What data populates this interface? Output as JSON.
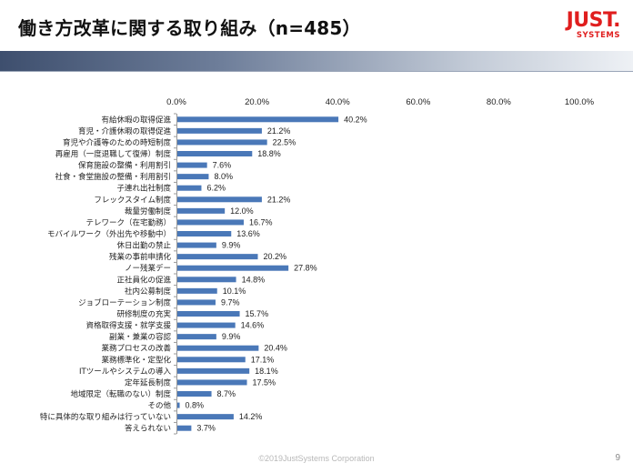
{
  "slide": {
    "title": "働き方改革に関する取り組み（n=485）",
    "logo_line1": "JUST.",
    "logo_line2": "SYSTEMS",
    "footer": "©2019JustSystems Corporation",
    "page_number": "9",
    "logo_color": "#e01e1e"
  },
  "chart_data": {
    "type": "bar",
    "orientation": "horizontal",
    "xlim": [
      0,
      100
    ],
    "ticks": [
      "0.0%",
      "20.0%",
      "40.0%",
      "60.0%",
      "80.0%",
      "100.0%"
    ],
    "tick_values": [
      0,
      20,
      40,
      60,
      80,
      100
    ],
    "bar_color": "#4a78b8",
    "categories": [
      "有給休暇の取得促進",
      "育児・介護休暇の取得促進",
      "育児や介護等のための時短制度",
      "再雇用（一度退職して復帰）制度",
      "保育施設の整備・利用割引",
      "社食・食堂施設の整備・利用割引",
      "子連れ出社制度",
      "フレックスタイム制度",
      "裁量労働制度",
      "テレワーク（在宅勤務）",
      "モバイルワーク（外出先や移動中）",
      "休日出勤の禁止",
      "残業の事前申請化",
      "ノー残業デー",
      "正社員化の促進",
      "社内公募制度",
      "ジョブローテーション制度",
      "研修制度の充実",
      "資格取得支援・就学支援",
      "副業・兼業の容認",
      "業務プロセスの改善",
      "業務標準化・定型化",
      "ITツールやシステムの導入",
      "定年延長制度",
      "地域限定（転職のない）制度",
      "その他",
      "特に具体的な取り組みは行っていない",
      "答えられない"
    ],
    "values": [
      40.2,
      21.2,
      22.5,
      18.8,
      7.6,
      8.0,
      6.2,
      21.2,
      12.0,
      16.7,
      13.6,
      9.9,
      20.2,
      27.8,
      14.8,
      10.1,
      9.7,
      15.7,
      14.6,
      9.9,
      20.4,
      17.1,
      18.1,
      17.5,
      8.7,
      0.8,
      14.2,
      3.7
    ],
    "labels": [
      "40.2%",
      "21.2%",
      "22.5%",
      "18.8%",
      "7.6%",
      "8.0%",
      "6.2%",
      "21.2%",
      "12.0%",
      "16.7%",
      "13.6%",
      "9.9%",
      "20.2%",
      "27.8%",
      "14.8%",
      "10.1%",
      "9.7%",
      "15.7%",
      "14.6%",
      "9.9%",
      "20.4%",
      "17.1%",
      "18.1%",
      "17.5%",
      "8.7%",
      "0.8%",
      "14.2%",
      "3.7%"
    ]
  }
}
